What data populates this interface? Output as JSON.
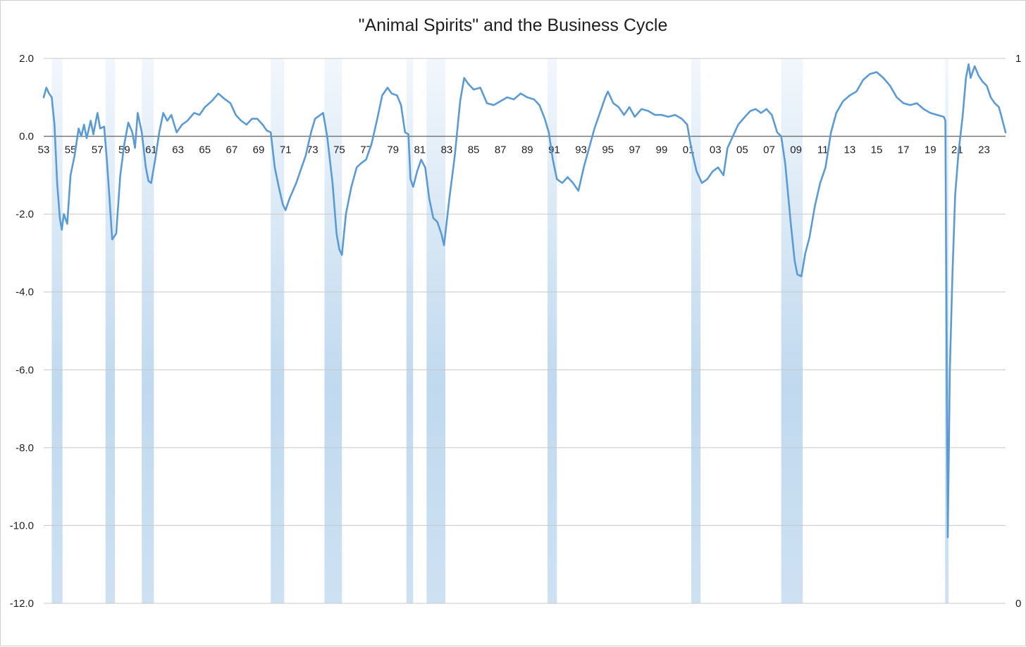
{
  "chart_data": {
    "type": "line",
    "title": "\"Animal Spirits\" and the Business Cycle",
    "xlabel": "",
    "ylabel": "",
    "x_range": [
      1953.0,
      2024.6
    ],
    "ylim": [
      -12.0,
      2.0
    ],
    "y2lim": [
      0,
      1
    ],
    "y_ticks": [
      "2.0",
      "0.0",
      "-2.0",
      "-4.0",
      "-6.0",
      "-8.0",
      "-10.0",
      "-12.0"
    ],
    "y2_ticks": [
      "1",
      "0"
    ],
    "x_ticks": [
      {
        "year": 1953,
        "label": "53"
      },
      {
        "year": 1955,
        "label": "55"
      },
      {
        "year": 1957,
        "label": "57"
      },
      {
        "year": 1959,
        "label": "59"
      },
      {
        "year": 1961,
        "label": "61"
      },
      {
        "year": 1963,
        "label": "63"
      },
      {
        "year": 1965,
        "label": "65"
      },
      {
        "year": 1967,
        "label": "67"
      },
      {
        "year": 1969,
        "label": "69"
      },
      {
        "year": 1971,
        "label": "71"
      },
      {
        "year": 1973,
        "label": "73"
      },
      {
        "year": 1975,
        "label": "75"
      },
      {
        "year": 1977,
        "label": "77"
      },
      {
        "year": 1979,
        "label": "79"
      },
      {
        "year": 1981,
        "label": "81"
      },
      {
        "year": 1983,
        "label": "83"
      },
      {
        "year": 1985,
        "label": "85"
      },
      {
        "year": 1987,
        "label": "87"
      },
      {
        "year": 1989,
        "label": "89"
      },
      {
        "year": 1991,
        "label": "91"
      },
      {
        "year": 1993,
        "label": "93"
      },
      {
        "year": 1995,
        "label": "95"
      },
      {
        "year": 1997,
        "label": "97"
      },
      {
        "year": 1999,
        "label": "99"
      },
      {
        "year": 2001,
        "label": "01"
      },
      {
        "year": 2003,
        "label": "03"
      },
      {
        "year": 2005,
        "label": "05"
      },
      {
        "year": 2007,
        "label": "07"
      },
      {
        "year": 2009,
        "label": "09"
      },
      {
        "year": 2011,
        "label": "11"
      },
      {
        "year": 2013,
        "label": "13"
      },
      {
        "year": 2015,
        "label": "15"
      },
      {
        "year": 2017,
        "label": "17"
      },
      {
        "year": 2019,
        "label": "19"
      },
      {
        "year": 2021,
        "label": "21"
      },
      {
        "year": 2023,
        "label": "23"
      }
    ],
    "recessions": [
      [
        1953.6,
        1954.4
      ],
      [
        1957.6,
        1958.3
      ],
      [
        1960.3,
        1961.2
      ],
      [
        1969.9,
        1970.9
      ],
      [
        1973.9,
        1975.2
      ],
      [
        1980.0,
        1980.5
      ],
      [
        1981.5,
        1982.9
      ],
      [
        1990.5,
        1991.2
      ],
      [
        2001.2,
        2001.9
      ],
      [
        2007.9,
        2009.5
      ],
      [
        2020.1,
        2020.35
      ]
    ],
    "series": [
      {
        "color": "#5b9bd5",
        "recession_color": "#bdd7ee",
        "points": [
          [
            1953.0,
            1.0
          ],
          [
            1953.2,
            1.25
          ],
          [
            1953.4,
            1.1
          ],
          [
            1953.6,
            1.0
          ],
          [
            1953.8,
            0.3
          ],
          [
            1954.0,
            -1.2
          ],
          [
            1954.2,
            -2.1
          ],
          [
            1954.35,
            -2.4
          ],
          [
            1954.5,
            -2.0
          ],
          [
            1954.75,
            -2.25
          ],
          [
            1955.0,
            -1.0
          ],
          [
            1955.3,
            -0.5
          ],
          [
            1955.6,
            0.2
          ],
          [
            1955.8,
            0.0
          ],
          [
            1956.0,
            0.3
          ],
          [
            1956.2,
            -0.05
          ],
          [
            1956.5,
            0.4
          ],
          [
            1956.7,
            0.05
          ],
          [
            1957.0,
            0.6
          ],
          [
            1957.2,
            0.2
          ],
          [
            1957.5,
            0.25
          ],
          [
            1957.7,
            -0.6
          ],
          [
            1957.9,
            -1.6
          ],
          [
            1958.1,
            -2.65
          ],
          [
            1958.4,
            -2.5
          ],
          [
            1958.7,
            -1.0
          ],
          [
            1959.0,
            -0.2
          ],
          [
            1959.3,
            0.35
          ],
          [
            1959.6,
            0.1
          ],
          [
            1959.8,
            -0.3
          ],
          [
            1960.0,
            0.6
          ],
          [
            1960.3,
            0.1
          ],
          [
            1960.6,
            -0.8
          ],
          [
            1960.8,
            -1.15
          ],
          [
            1961.0,
            -1.2
          ],
          [
            1961.3,
            -0.6
          ],
          [
            1961.6,
            0.1
          ],
          [
            1961.9,
            0.6
          ],
          [
            1962.2,
            0.4
          ],
          [
            1962.5,
            0.55
          ],
          [
            1962.9,
            0.1
          ],
          [
            1963.3,
            0.3
          ],
          [
            1963.7,
            0.4
          ],
          [
            1964.2,
            0.6
          ],
          [
            1964.6,
            0.55
          ],
          [
            1965.0,
            0.75
          ],
          [
            1965.5,
            0.9
          ],
          [
            1966.0,
            1.1
          ],
          [
            1966.5,
            0.95
          ],
          [
            1966.9,
            0.85
          ],
          [
            1967.3,
            0.55
          ],
          [
            1967.7,
            0.4
          ],
          [
            1968.1,
            0.3
          ],
          [
            1968.5,
            0.45
          ],
          [
            1968.9,
            0.45
          ],
          [
            1969.3,
            0.3
          ],
          [
            1969.6,
            0.15
          ],
          [
            1969.9,
            0.1
          ],
          [
            1970.2,
            -0.8
          ],
          [
            1970.5,
            -1.3
          ],
          [
            1970.8,
            -1.75
          ],
          [
            1971.0,
            -1.9
          ],
          [
            1971.3,
            -1.6
          ],
          [
            1971.8,
            -1.2
          ],
          [
            1972.1,
            -0.9
          ],
          [
            1972.5,
            -0.5
          ],
          [
            1972.9,
            0.1
          ],
          [
            1973.2,
            0.45
          ],
          [
            1973.6,
            0.55
          ],
          [
            1973.8,
            0.6
          ],
          [
            1974.1,
            0.0
          ],
          [
            1974.5,
            -1.2
          ],
          [
            1974.8,
            -2.5
          ],
          [
            1975.0,
            -2.9
          ],
          [
            1975.2,
            -3.05
          ],
          [
            1975.5,
            -2.0
          ],
          [
            1975.9,
            -1.3
          ],
          [
            1976.3,
            -0.8
          ],
          [
            1976.6,
            -0.7
          ],
          [
            1977.0,
            -0.6
          ],
          [
            1977.4,
            -0.2
          ],
          [
            1977.8,
            0.4
          ],
          [
            1978.2,
            1.05
          ],
          [
            1978.6,
            1.25
          ],
          [
            1978.9,
            1.1
          ],
          [
            1979.3,
            1.05
          ],
          [
            1979.6,
            0.8
          ],
          [
            1979.9,
            0.1
          ],
          [
            1980.15,
            0.05
          ],
          [
            1980.3,
            -1.1
          ],
          [
            1980.5,
            -1.3
          ],
          [
            1980.8,
            -0.9
          ],
          [
            1981.1,
            -0.6
          ],
          [
            1981.4,
            -0.8
          ],
          [
            1981.7,
            -1.6
          ],
          [
            1982.0,
            -2.1
          ],
          [
            1982.3,
            -2.2
          ],
          [
            1982.6,
            -2.5
          ],
          [
            1982.8,
            -2.8
          ],
          [
            1983.2,
            -1.6
          ],
          [
            1983.6,
            -0.5
          ],
          [
            1984.0,
            0.9
          ],
          [
            1984.3,
            1.5
          ],
          [
            1984.6,
            1.35
          ],
          [
            1985.0,
            1.2
          ],
          [
            1985.5,
            1.25
          ],
          [
            1986.0,
            0.85
          ],
          [
            1986.5,
            0.8
          ],
          [
            1987.0,
            0.9
          ],
          [
            1987.5,
            1.0
          ],
          [
            1988.0,
            0.95
          ],
          [
            1988.5,
            1.1
          ],
          [
            1989.0,
            1.0
          ],
          [
            1989.5,
            0.95
          ],
          [
            1989.9,
            0.8
          ],
          [
            1990.3,
            0.45
          ],
          [
            1990.6,
            0.1
          ],
          [
            1990.9,
            -0.6
          ],
          [
            1991.2,
            -1.1
          ],
          [
            1991.6,
            -1.2
          ],
          [
            1992.0,
            -1.05
          ],
          [
            1992.4,
            -1.2
          ],
          [
            1992.8,
            -1.4
          ],
          [
            1993.2,
            -0.8
          ],
          [
            1993.6,
            -0.3
          ],
          [
            1994.0,
            0.2
          ],
          [
            1994.5,
            0.7
          ],
          [
            1994.8,
            1.0
          ],
          [
            1995.0,
            1.15
          ],
          [
            1995.4,
            0.85
          ],
          [
            1995.8,
            0.75
          ],
          [
            1996.2,
            0.55
          ],
          [
            1996.6,
            0.75
          ],
          [
            1997.0,
            0.5
          ],
          [
            1997.5,
            0.7
          ],
          [
            1998.0,
            0.65
          ],
          [
            1998.5,
            0.55
          ],
          [
            1999.0,
            0.55
          ],
          [
            1999.5,
            0.5
          ],
          [
            2000.0,
            0.55
          ],
          [
            2000.5,
            0.45
          ],
          [
            2000.9,
            0.3
          ],
          [
            2001.2,
            -0.3
          ],
          [
            2001.6,
            -0.9
          ],
          [
            2002.0,
            -1.2
          ],
          [
            2002.4,
            -1.1
          ],
          [
            2002.8,
            -0.9
          ],
          [
            2003.2,
            -0.8
          ],
          [
            2003.6,
            -1.0
          ],
          [
            2003.9,
            -0.3
          ],
          [
            2004.3,
            0.0
          ],
          [
            2004.7,
            0.3
          ],
          [
            2005.2,
            0.5
          ],
          [
            2005.6,
            0.65
          ],
          [
            2006.0,
            0.7
          ],
          [
            2006.4,
            0.6
          ],
          [
            2006.8,
            0.7
          ],
          [
            2007.2,
            0.55
          ],
          [
            2007.6,
            0.1
          ],
          [
            2007.9,
            0.0
          ],
          [
            2008.2,
            -0.7
          ],
          [
            2008.6,
            -2.2
          ],
          [
            2008.9,
            -3.2
          ],
          [
            2009.1,
            -3.55
          ],
          [
            2009.4,
            -3.6
          ],
          [
            2009.7,
            -3.0
          ],
          [
            2010.0,
            -2.6
          ],
          [
            2010.4,
            -1.8
          ],
          [
            2010.8,
            -1.2
          ],
          [
            2011.2,
            -0.8
          ],
          [
            2011.6,
            0.1
          ],
          [
            2012.0,
            0.6
          ],
          [
            2012.5,
            0.9
          ],
          [
            2013.0,
            1.05
          ],
          [
            2013.5,
            1.15
          ],
          [
            2014.0,
            1.45
          ],
          [
            2014.5,
            1.6
          ],
          [
            2015.0,
            1.65
          ],
          [
            2015.5,
            1.5
          ],
          [
            2016.0,
            1.3
          ],
          [
            2016.5,
            1.0
          ],
          [
            2017.0,
            0.85
          ],
          [
            2017.5,
            0.8
          ],
          [
            2018.0,
            0.85
          ],
          [
            2018.5,
            0.7
          ],
          [
            2019.0,
            0.6
          ],
          [
            2019.5,
            0.55
          ],
          [
            2020.0,
            0.5
          ],
          [
            2020.12,
            0.4
          ],
          [
            2020.22,
            -6.0
          ],
          [
            2020.3,
            -10.3
          ],
          [
            2020.45,
            -6.0
          ],
          [
            2020.65,
            -3.5
          ],
          [
            2020.85,
            -1.5
          ],
          [
            2021.1,
            -0.4
          ],
          [
            2021.4,
            0.5
          ],
          [
            2021.65,
            1.5
          ],
          [
            2021.85,
            1.85
          ],
          [
            2022.0,
            1.5
          ],
          [
            2022.3,
            1.8
          ],
          [
            2022.6,
            1.55
          ],
          [
            2022.9,
            1.4
          ],
          [
            2023.2,
            1.3
          ],
          [
            2023.5,
            1.0
          ],
          [
            2023.8,
            0.85
          ],
          [
            2024.1,
            0.75
          ],
          [
            2024.3,
            0.5
          ],
          [
            2024.6,
            0.1
          ]
        ]
      }
    ]
  }
}
